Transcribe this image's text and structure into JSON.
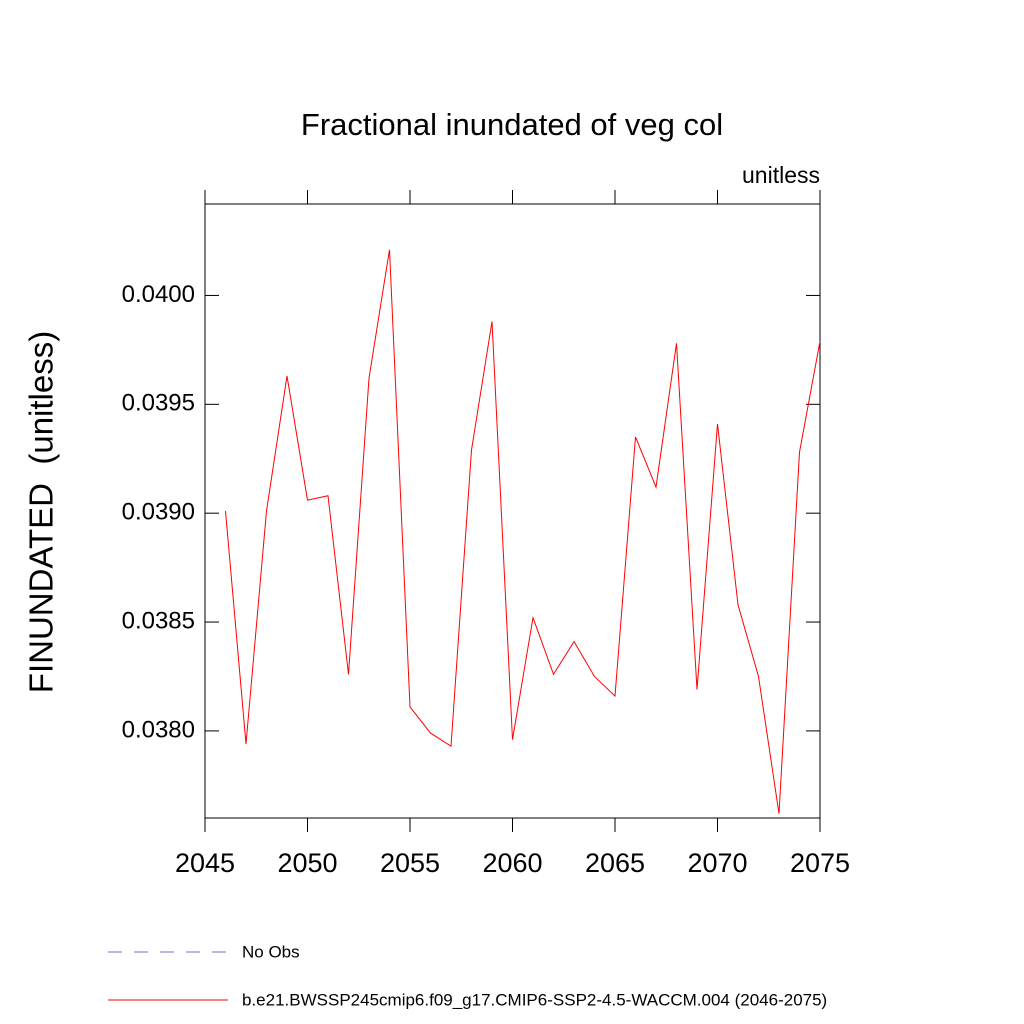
{
  "chart_data": {
    "type": "line",
    "title": "Fractional inundated of veg col",
    "units": "unitless",
    "y_label": "FINUNDATED  (unitless)",
    "x": [
      2046,
      2047,
      2048,
      2049,
      2050,
      2051,
      2052,
      2053,
      2054,
      2055,
      2056,
      2057,
      2058,
      2059,
      2060,
      2061,
      2062,
      2063,
      2064,
      2065,
      2066,
      2067,
      2068,
      2069,
      2070,
      2071,
      2072,
      2073,
      2074,
      2075
    ],
    "series": [
      {
        "name": "No Obs",
        "color": "#7070c8",
        "dashed": true,
        "values": [
          null,
          null,
          null,
          null,
          null,
          null,
          null,
          null,
          null,
          null,
          null,
          null,
          null,
          null,
          null,
          null,
          null,
          null,
          null,
          null,
          null,
          null,
          null,
          null,
          null,
          null,
          null,
          null,
          null,
          null
        ]
      },
      {
        "name": "b.e21.BWSSP245cmip6.f09_g17.CMIP6-SSP2-4.5-WACCM.004 (2046-2075)",
        "color": "#ff0000",
        "dashed": false,
        "values": [
          0.03901,
          0.03794,
          0.03901,
          0.03963,
          0.03906,
          0.03908,
          0.03826,
          0.03962,
          0.04021,
          0.03811,
          0.03799,
          0.03793,
          0.03929,
          0.03988,
          0.03796,
          0.03852,
          0.03826,
          0.03841,
          0.03825,
          0.03816,
          0.03935,
          0.03912,
          0.03978,
          0.03819,
          0.03941,
          0.03858,
          0.03825,
          0.03762,
          0.03928,
          0.03979
        ]
      }
    ],
    "xlim": [
      2045,
      2075
    ],
    "xticks": [
      2045,
      2050,
      2055,
      2060,
      2065,
      2070,
      2075
    ],
    "ylim": [
      0.0376,
      0.04042
    ],
    "yticks": [
      {
        "value": 0.038,
        "label": "0.0380"
      },
      {
        "value": 0.0385,
        "label": "0.0385"
      },
      {
        "value": 0.039,
        "label": "0.0390"
      },
      {
        "value": 0.0395,
        "label": "0.0395"
      },
      {
        "value": 0.04,
        "label": "0.0400"
      }
    ],
    "grid": false
  }
}
